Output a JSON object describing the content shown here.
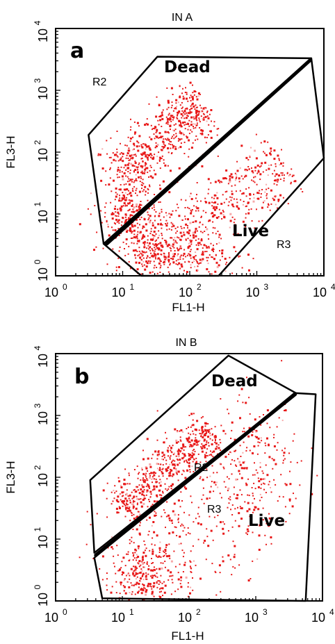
{
  "colors": {
    "dot": "#e81818",
    "dot_light": "#f6a8a8",
    "frame": "#000000",
    "background": "#ffffff"
  },
  "chart_data": [
    {
      "type": "scatter",
      "panel_letter": "a",
      "title": "IN A",
      "xlabel": "FL1-H",
      "ylabel": "FL3-H",
      "xscale": "log",
      "yscale": "log",
      "xlim": [
        1,
        10000
      ],
      "ylim": [
        1,
        10000
      ],
      "tick_base": "10",
      "tick_exponents": [
        "0",
        "1",
        "2",
        "3",
        "4"
      ],
      "regions": [
        {
          "label": "Dead",
          "gate": "R2",
          "polygon": [
            [
              33,
              3500
            ],
            [
              6500,
              3300
            ],
            [
              5.2,
              3.3
            ],
            [
              3.1,
              190
            ]
          ]
        },
        {
          "label": "Live",
          "gate": "R3",
          "polygon": [
            [
              6500,
              3300
            ],
            [
              10000,
              80
            ],
            [
              270,
              1
            ],
            [
              19,
              1
            ],
            [
              5.2,
              3.3
            ]
          ]
        }
      ],
      "gate_labels": [
        "R2",
        "R3"
      ],
      "region_labels": [
        "Dead",
        "Live"
      ],
      "populations": [
        {
          "name": "dead",
          "shape": "band",
          "points": [
            [
              10,
              45
            ],
            [
              20,
              90
            ],
            [
              40,
              230
            ],
            [
              90,
              380
            ],
            [
              170,
              560
            ]
          ],
          "spread_dex": 0.5
        },
        {
          "name": "dead-low",
          "shape": "cloud",
          "center": [
            11,
            12
          ],
          "spread": [
            0.22,
            0.3
          ]
        },
        {
          "name": "live",
          "shape": "band",
          "points": [
            [
              15,
              2.5
            ],
            [
              50,
              4
            ],
            [
              200,
              10
            ],
            [
              700,
              30
            ],
            [
              2500,
              70
            ]
          ],
          "spread_dex": 0.55
        },
        {
          "name": "live-low",
          "shape": "cloud",
          "center": [
            60,
            2.2
          ],
          "spread": [
            0.45,
            0.2
          ]
        }
      ]
    },
    {
      "type": "scatter",
      "panel_letter": "b",
      "title": "IN B",
      "xlabel": "FL1-H",
      "ylabel": "FL3-H",
      "xscale": "log",
      "yscale": "log",
      "xlim": [
        1,
        10000
      ],
      "ylim": [
        1,
        10000
      ],
      "tick_base": "10",
      "tick_exponents": [
        "0",
        "1",
        "2",
        "3",
        "4"
      ],
      "regions": [
        {
          "label": "Dead",
          "gate": "R2",
          "polygon": [
            [
              3.3,
              90
            ],
            [
              390,
              9300
            ],
            [
              4000,
              2300
            ],
            [
              3.8,
              6
            ]
          ]
        },
        {
          "label": "Live",
          "gate": "R3",
          "polygon": [
            [
              3.8,
              5
            ],
            [
              3800,
              2300
            ],
            [
              7900,
              2200
            ],
            [
              5600,
              1
            ],
            [
              5,
              1.1
            ]
          ]
        }
      ],
      "gate_labels": [
        "R2",
        "R3"
      ],
      "region_labels": [
        "Dead",
        "Live"
      ],
      "populations": [
        {
          "name": "dead",
          "shape": "band",
          "points": [
            [
              10,
              30
            ],
            [
              20,
              70
            ],
            [
              50,
              170
            ],
            [
              120,
              330
            ],
            [
              220,
              520
            ]
          ],
          "spread_dex": 0.4
        },
        {
          "name": "live",
          "shape": "cloud",
          "center": [
            70,
            12
          ],
          "spread": [
            0.55,
            0.55
          ]
        },
        {
          "name": "live-low",
          "shape": "cloud",
          "center": [
            20,
            2.5
          ],
          "spread": [
            0.25,
            0.25
          ]
        },
        {
          "name": "live-right",
          "shape": "cloud",
          "center": [
            900,
            120
          ],
          "spread": [
            0.35,
            0.55
          ]
        }
      ]
    }
  ]
}
